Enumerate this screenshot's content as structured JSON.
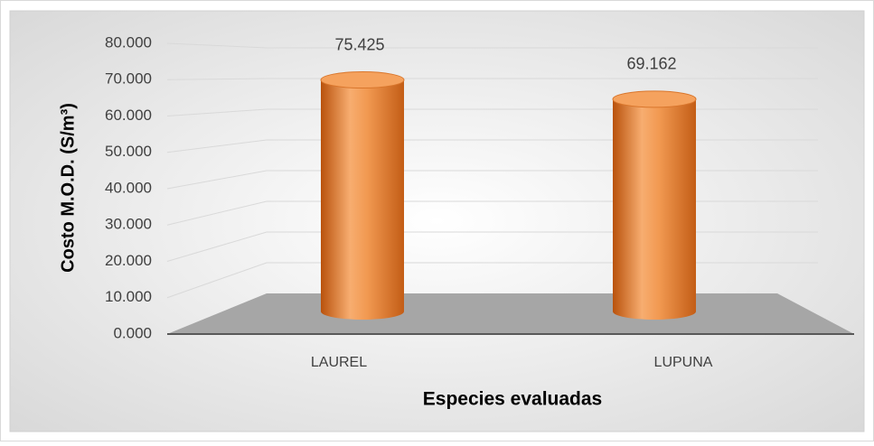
{
  "chart_data": {
    "type": "bar3d",
    "categories": [
      "LAUREL",
      "LUPUNA"
    ],
    "values": [
      75.425,
      69.162
    ],
    "color": "#e8873a",
    "xlabel": "Especies evaluadas",
    "ylabel": "Costo M.O.D. (S/m³)",
    "ylim": [
      0,
      80
    ],
    "yticks": [
      {
        "value": 0,
        "label": "0.000"
      },
      {
        "value": 10,
        "label": "10.000"
      },
      {
        "value": 20,
        "label": "20.000"
      },
      {
        "value": 30,
        "label": "30.000"
      },
      {
        "value": 40,
        "label": "40.000"
      },
      {
        "value": 50,
        "label": "50.000"
      },
      {
        "value": 60,
        "label": "60.000"
      },
      {
        "value": 70,
        "label": "70.000"
      },
      {
        "value": 80,
        "label": "80.000"
      }
    ],
    "grid": true
  }
}
